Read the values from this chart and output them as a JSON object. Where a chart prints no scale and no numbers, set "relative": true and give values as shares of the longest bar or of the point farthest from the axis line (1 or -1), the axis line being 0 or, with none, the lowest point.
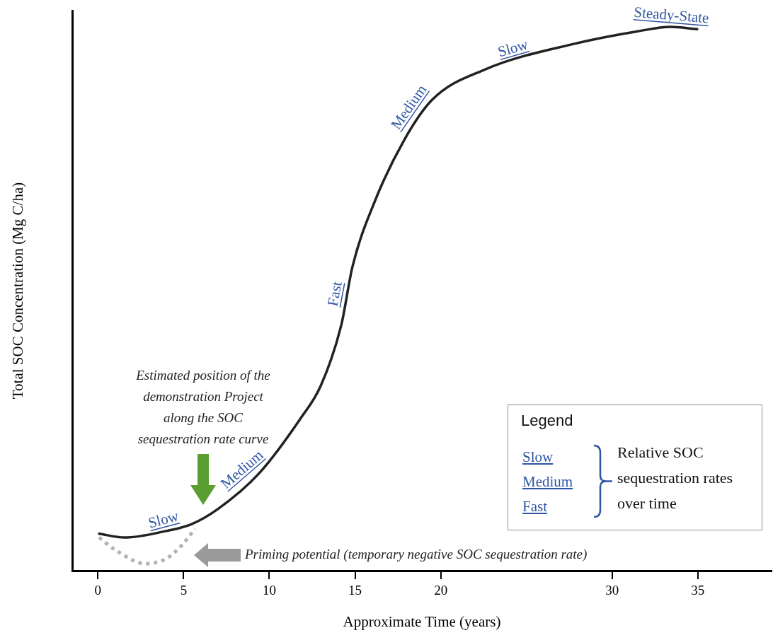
{
  "chart_data": {
    "type": "line",
    "relative": true,
    "marker": "none",
    "xlabel": "Approximate Time (years)",
    "ylabel": "Total SOC Concentration (Mg C/ha)",
    "xlim": [
      -1.5,
      39.3
    ],
    "xticks": [
      0,
      5,
      10,
      15,
      20,
      30,
      35
    ],
    "series": [
      {
        "color": "#222222",
        "x": [
          0.07,
          1.55,
          3.98,
          5.42,
          6.98,
          9.4,
          11.8,
          13.0,
          14.2,
          14.85,
          16.15,
          17.85,
          19.5,
          22.6,
          27.8,
          31.5,
          33.4,
          34.96
        ],
        "values": [
          0.068,
          0.061,
          0.073,
          0.085,
          0.113,
          0.179,
          0.279,
          0.34,
          0.452,
          0.559,
          0.679,
          0.791,
          0.866,
          0.922,
          0.969,
          0.992,
          1.0,
          0.996
        ]
      },
      {
        "color": "#b3b3b3",
        "line_style": "dotted",
        "x": [
          0.07,
          0.98,
          2.78,
          3.98,
          4.81,
          5.67
        ],
        "values": [
          0.061,
          0.039,
          0.013,
          0.022,
          0.044,
          0.077
        ]
      }
    ],
    "annotations": [
      {
        "text": "Slow",
        "x": 4.0,
        "y": 0.073
      },
      {
        "text": "Medium",
        "x": 8.85,
        "y": 0.17
      },
      {
        "text": "Fast",
        "x": 14.5,
        "y": 0.505
      },
      {
        "text": "Medium",
        "x": 18.7,
        "y": 0.84
      },
      {
        "text": "Slow",
        "x": 24.4,
        "y": 0.94
      },
      {
        "text": "Steady-State",
        "x": 33.4,
        "y": 1.0
      },
      "Estimated position of the demonstration Project along the SOC sequestration rate curve",
      "Priming potential (temporary negative SOC sequestration rate)",
      "Legend",
      "Slow",
      "Medium",
      "Fast",
      "Relative SOC sequestration rates over time"
    ]
  }
}
